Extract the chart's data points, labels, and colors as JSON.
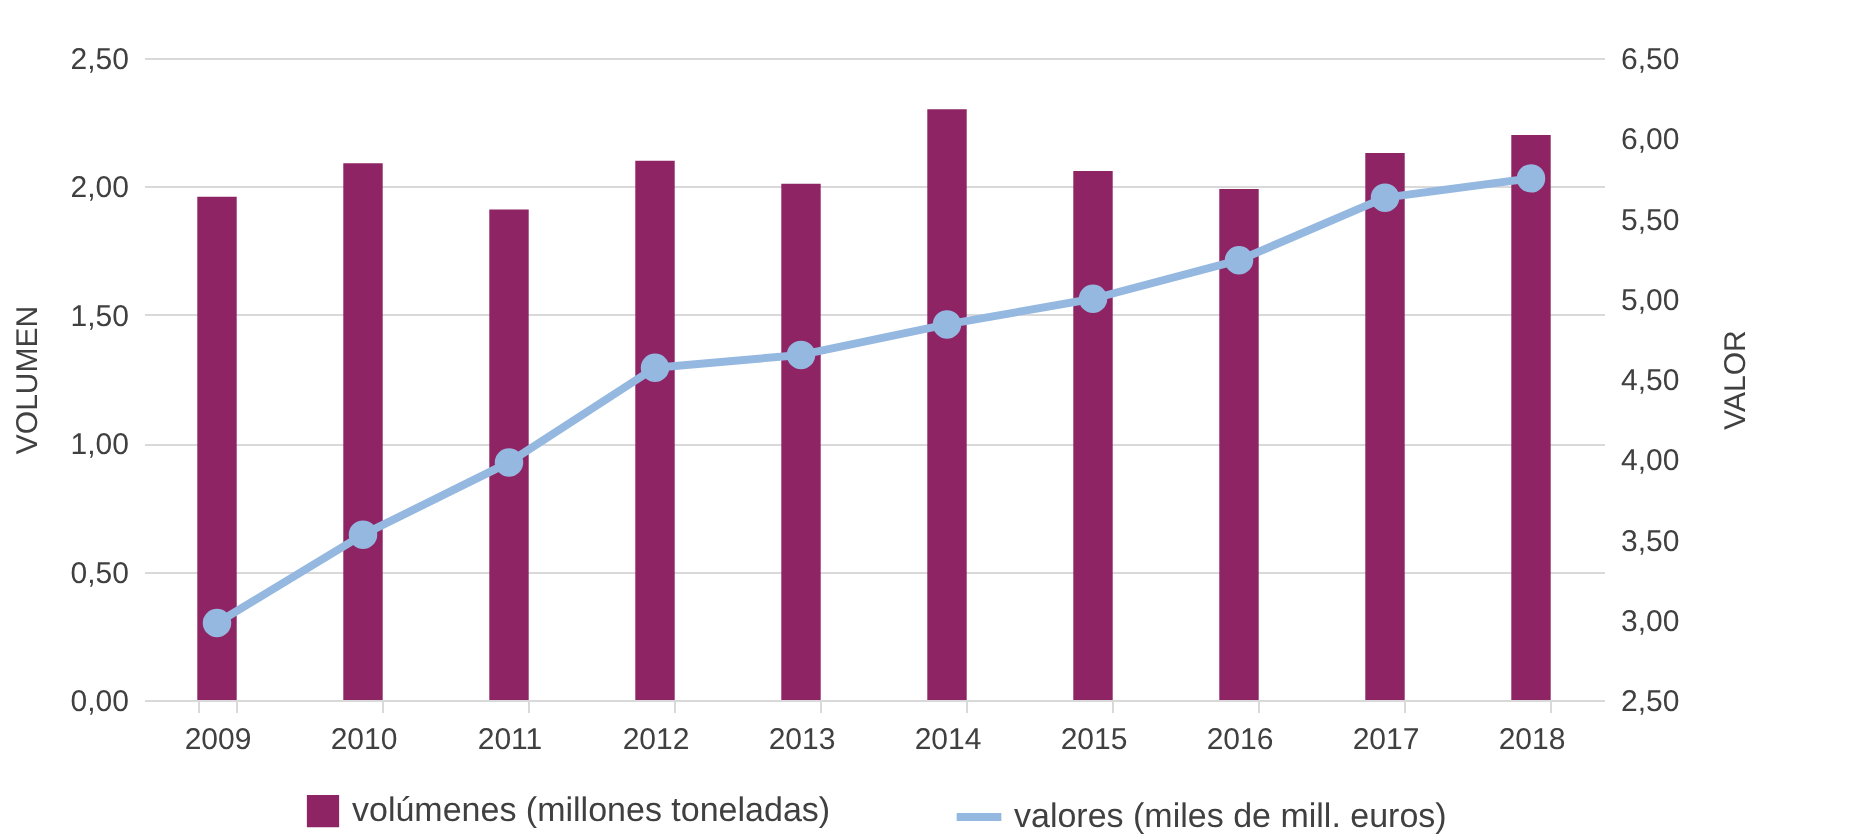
{
  "chart_data": {
    "type": "bar",
    "categories": [
      "2009",
      "2010",
      "2011",
      "2012",
      "2013",
      "2014",
      "2015",
      "2016",
      "2017",
      "2018"
    ],
    "series": [
      {
        "name": "volúmenes (millones toneladas)",
        "color": "#8e2464",
        "values": [
          1.96,
          2.09,
          1.91,
          2.1,
          2.01,
          2.3,
          2.06,
          1.99,
          2.13,
          2.2
        ]
      },
      {
        "name": "valores (miles de mill. euros)",
        "type": "line",
        "axis": "y2",
        "color": "#95b8e0",
        "values": [
          2.98,
          3.53,
          3.98,
          4.57,
          4.65,
          4.84,
          5.0,
          5.24,
          5.63,
          5.75
        ]
      }
    ],
    "ylabel": "VOLUMEN",
    "y2label": "VALOR",
    "ylim": [
      0,
      2.5
    ],
    "yticks": [
      {
        "value": 0,
        "label": "0,00"
      },
      {
        "value": 0.5,
        "label": "0,50"
      },
      {
        "value": 1,
        "label": "1,00"
      },
      {
        "value": 1.5,
        "label": "1,50"
      },
      {
        "value": 2,
        "label": "2,00"
      },
      {
        "value": 2.5,
        "label": "2,50"
      }
    ],
    "y2lim": [
      2.5,
      6.5
    ],
    "y2ticks": [
      {
        "value": 2.5,
        "label": "2,50"
      },
      {
        "value": 3,
        "label": "3,00"
      },
      {
        "value": 3.5,
        "label": "3,50"
      },
      {
        "value": 4,
        "label": "4,00"
      },
      {
        "value": 4.5,
        "label": "4,50"
      },
      {
        "value": 5,
        "label": "5,00"
      },
      {
        "value": 5.5,
        "label": "5,50"
      },
      {
        "value": 6,
        "label": "6,00"
      },
      {
        "value": 6.5,
        "label": "6,50"
      }
    ],
    "grid": "y",
    "legend": "bottom",
    "marker": "circle",
    "line_style": "solid"
  }
}
